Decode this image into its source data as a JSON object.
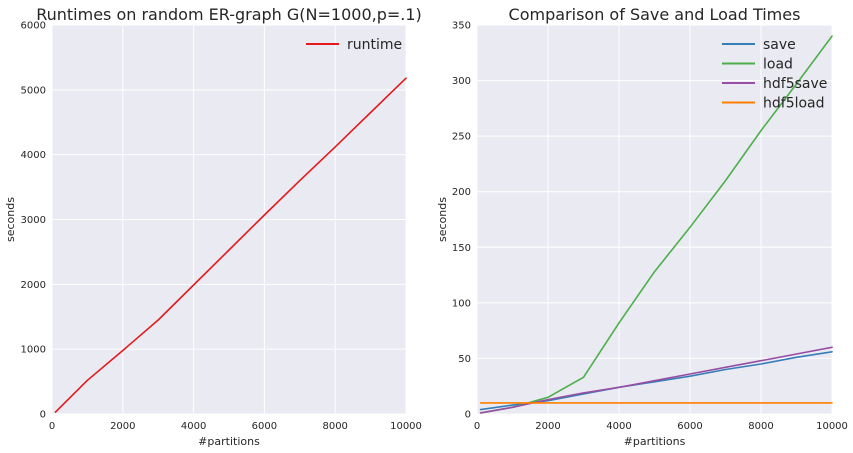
{
  "chart_data": [
    {
      "type": "line",
      "title": "Runtimes on random ER-graph G(N=1000,p=.1)",
      "xlabel": "#partitions",
      "ylabel": "seconds",
      "xlim": [
        0,
        10000
      ],
      "ylim": [
        0,
        6000
      ],
      "xticks": [
        0,
        2000,
        4000,
        6000,
        8000,
        10000
      ],
      "yticks": [
        0,
        1000,
        2000,
        3000,
        4000,
        5000,
        6000
      ],
      "grid": true,
      "legend_position": "top-right",
      "series": [
        {
          "name": "runtime",
          "color": "#e41a1c",
          "x": [
            100,
            1000,
            2000,
            3000,
            4000,
            5000,
            6000,
            7000,
            8000,
            9000,
            10000
          ],
          "y": [
            30,
            520,
            980,
            1450,
            1990,
            2530,
            3070,
            3600,
            4120,
            4650,
            5180
          ]
        }
      ]
    },
    {
      "type": "line",
      "title": "Comparison of Save and Load Times",
      "xlabel": "#partitions",
      "ylabel": "seconds",
      "xlim": [
        0,
        10000
      ],
      "ylim": [
        0,
        350
      ],
      "xticks": [
        0,
        2000,
        4000,
        6000,
        8000,
        10000
      ],
      "yticks": [
        0,
        50,
        100,
        150,
        200,
        250,
        300,
        350
      ],
      "grid": true,
      "legend_position": "top-right",
      "series": [
        {
          "name": "save",
          "color": "#377eb8",
          "x": [
            100,
            1000,
            2000,
            3000,
            4000,
            5000,
            6000,
            7000,
            8000,
            9000,
            10000
          ],
          "y": [
            4,
            8,
            12,
            18,
            24,
            29,
            34,
            40,
            45,
            51,
            56
          ]
        },
        {
          "name": "load",
          "color": "#4daf4a",
          "x": [
            100,
            1000,
            2000,
            3000,
            4000,
            5000,
            6000,
            7000,
            8000,
            9000,
            10000
          ],
          "y": [
            1,
            6,
            15,
            33,
            82,
            128,
            168,
            210,
            255,
            297,
            340
          ]
        },
        {
          "name": "hdf5save",
          "color": "#984ea3",
          "x": [
            100,
            1000,
            2000,
            3000,
            4000,
            5000,
            6000,
            7000,
            8000,
            9000,
            10000
          ],
          "y": [
            1,
            6,
            13,
            19,
            24,
            30,
            36,
            42,
            48,
            54,
            60
          ]
        },
        {
          "name": "hdf5load",
          "color": "#ff7f00",
          "x": [
            100,
            1000,
            2000,
            3000,
            4000,
            5000,
            6000,
            7000,
            8000,
            9000,
            10000
          ],
          "y": [
            10,
            10,
            10,
            10,
            10,
            10,
            10,
            10,
            10,
            10,
            10
          ]
        }
      ]
    }
  ]
}
